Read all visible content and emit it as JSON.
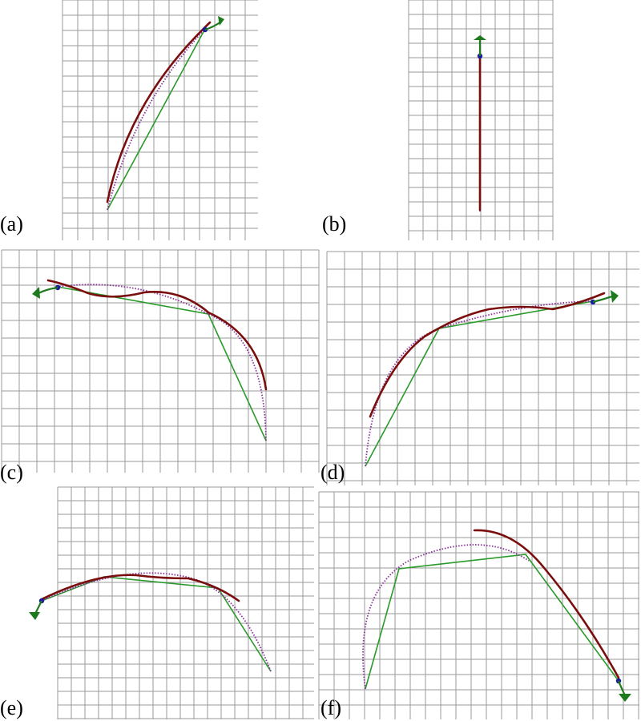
{
  "figure": {
    "panels": [
      {
        "id": "a",
        "label": "(a)"
      },
      {
        "id": "b",
        "label": "(b)"
      },
      {
        "id": "c",
        "label": "(c)"
      },
      {
        "id": "d",
        "label": "(d)"
      },
      {
        "id": "e",
        "label": "(e)"
      },
      {
        "id": "f",
        "label": "(f)"
      }
    ],
    "colors": {
      "grid": "#9a9a9a",
      "robot_links": "#2a9a2a",
      "constant_curvature_arc": "#8a2f9a",
      "measured_shape": "#7a0d0d",
      "tip_marker": "#1a1a9e",
      "tip_frame": "#1d7a1d"
    }
  }
}
